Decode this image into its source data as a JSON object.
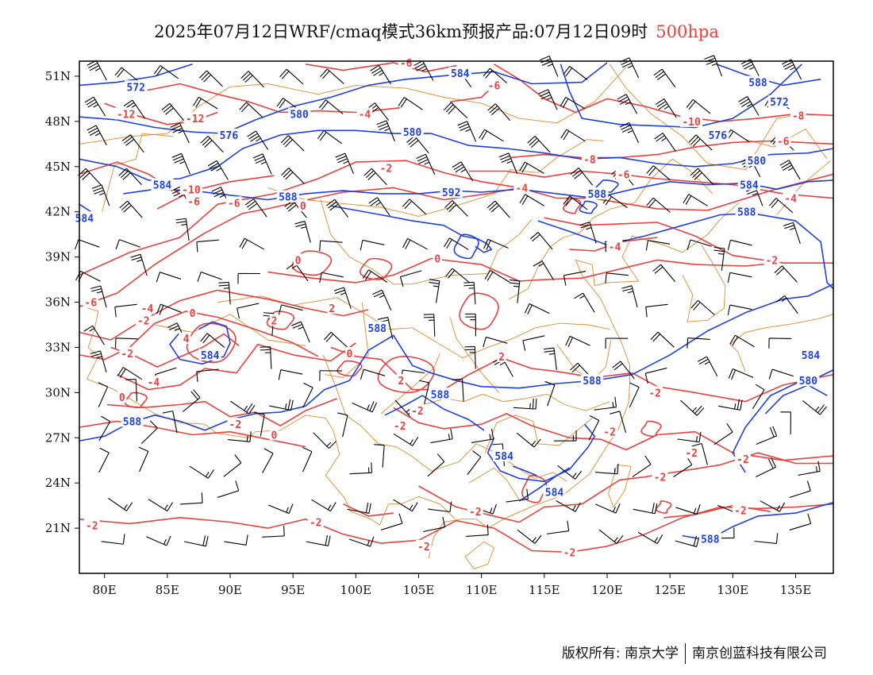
{
  "title": {
    "main": "2025年07月12日WRF/cmaq模式36km预报产品:07月12日09时",
    "level": "500hpa"
  },
  "axes": {
    "x_ticks": [
      "80E",
      "85E",
      "90E",
      "95E",
      "100E",
      "105E",
      "110E",
      "115E",
      "120E",
      "125E",
      "130E",
      "135E"
    ],
    "y_ticks": [
      "51N",
      "48N",
      "45N",
      "42N",
      "39N",
      "36N",
      "33N",
      "30N",
      "27N",
      "24N",
      "21N"
    ]
  },
  "map_extent": {
    "lon_min": 78,
    "lon_max": 138,
    "lat_min": 18,
    "lat_max": 52
  },
  "colors": {
    "height_contour": "#1f3fe0",
    "temperature_contour": "#e8413e",
    "boundaries": "#e08a30",
    "wind_barbs": "#000000"
  },
  "height_labels": [
    {
      "text": "572",
      "lon": 82.5,
      "lat": 50.3
    },
    {
      "text": "584",
      "lon": 108.3,
      "lat": 51.2
    },
    {
      "text": "588",
      "lon": 132.0,
      "lat": 50.6
    },
    {
      "text": "572",
      "lon": 133.7,
      "lat": 49.3
    },
    {
      "text": "580",
      "lon": 95.5,
      "lat": 48.5
    },
    {
      "text": "576",
      "lon": 89.9,
      "lat": 47.1
    },
    {
      "text": "580",
      "lon": 104.5,
      "lat": 47.3
    },
    {
      "text": "576",
      "lon": 128.8,
      "lat": 47.1
    },
    {
      "text": "580",
      "lon": 131.9,
      "lat": 45.4
    },
    {
      "text": "584",
      "lon": 84.6,
      "lat": 43.8
    },
    {
      "text": "588",
      "lon": 94.6,
      "lat": 43.0
    },
    {
      "text": "592",
      "lon": 107.6,
      "lat": 43.3
    },
    {
      "text": "588",
      "lon": 119.2,
      "lat": 43.2
    },
    {
      "text": "584",
      "lon": 131.3,
      "lat": 43.8
    },
    {
      "text": "588",
      "lon": 131.1,
      "lat": 42.0
    },
    {
      "text": "584",
      "lon": 78.4,
      "lat": 41.6
    },
    {
      "text": "588",
      "lon": 101.7,
      "lat": 34.3
    },
    {
      "text": "584",
      "lon": 88.4,
      "lat": 32.5
    },
    {
      "text": "588",
      "lon": 118.8,
      "lat": 30.8
    },
    {
      "text": "584",
      "lon": 136.2,
      "lat": 32.5
    },
    {
      "text": "580",
      "lon": 136.0,
      "lat": 30.8
    },
    {
      "text": "588",
      "lon": 106.7,
      "lat": 29.9
    },
    {
      "text": "588",
      "lon": 82.2,
      "lat": 28.1
    },
    {
      "text": "584",
      "lon": 111.8,
      "lat": 25.8
    },
    {
      "text": "584",
      "lon": 115.8,
      "lat": 23.4
    },
    {
      "text": "588",
      "lon": 128.2,
      "lat": 20.3
    }
  ],
  "temperature_labels": [
    {
      "text": "-6",
      "lon": 104.0,
      "lat": 51.9
    },
    {
      "text": "-6",
      "lon": 111.0,
      "lat": 50.4
    },
    {
      "text": "-12",
      "lon": 81.7,
      "lat": 48.5
    },
    {
      "text": "-12",
      "lon": 87.2,
      "lat": 48.2
    },
    {
      "text": "-4",
      "lon": 100.7,
      "lat": 48.5
    },
    {
      "text": "-10",
      "lon": 126.7,
      "lat": 48.0
    },
    {
      "text": "-8",
      "lon": 135.2,
      "lat": 48.4
    },
    {
      "text": "-6",
      "lon": 134.0,
      "lat": 46.7
    },
    {
      "text": "-2",
      "lon": 102.4,
      "lat": 44.9
    },
    {
      "text": "-8",
      "lon": 118.6,
      "lat": 45.5
    },
    {
      "text": "-6",
      "lon": 121.3,
      "lat": 44.5
    },
    {
      "text": "-4",
      "lon": 113.2,
      "lat": 43.6
    },
    {
      "text": "-10",
      "lon": 86.9,
      "lat": 43.5
    },
    {
      "text": "-6",
      "lon": 87.1,
      "lat": 42.7
    },
    {
      "text": "-6",
      "lon": 90.3,
      "lat": 42.6
    },
    {
      "text": "0",
      "lon": 95.8,
      "lat": 42.4
    },
    {
      "text": "-4",
      "lon": 134.6,
      "lat": 42.9
    },
    {
      "text": "-4",
      "lon": 120.6,
      "lat": 39.7
    },
    {
      "text": "0",
      "lon": 95.4,
      "lat": 38.8
    },
    {
      "text": "0",
      "lon": 106.5,
      "lat": 38.9
    },
    {
      "text": "-2",
      "lon": 133.1,
      "lat": 38.8
    },
    {
      "text": "-6",
      "lon": 78.9,
      "lat": 36.0
    },
    {
      "text": "-4",
      "lon": 83.4,
      "lat": 35.6
    },
    {
      "text": "0",
      "lon": 87.0,
      "lat": 35.3
    },
    {
      "text": "-2",
      "lon": 83.1,
      "lat": 34.8
    },
    {
      "text": "2",
      "lon": 98.1,
      "lat": 35.6
    },
    {
      "text": "2",
      "lon": 93.5,
      "lat": 34.8
    },
    {
      "text": "4",
      "lon": 86.5,
      "lat": 33.6
    },
    {
      "text": "-2",
      "lon": 81.8,
      "lat": 32.6
    },
    {
      "text": "0",
      "lon": 99.5,
      "lat": 32.6
    },
    {
      "text": "2",
      "lon": 111.6,
      "lat": 32.4
    },
    {
      "text": "-4",
      "lon": 83.9,
      "lat": 30.7
    },
    {
      "text": "2",
      "lon": 103.6,
      "lat": 30.8
    },
    {
      "text": "-2",
      "lon": 123.8,
      "lat": 30.0
    },
    {
      "text": "0",
      "lon": 81.4,
      "lat": 29.7
    },
    {
      "text": "-2",
      "lon": 104.9,
      "lat": 28.8
    },
    {
      "text": "-2",
      "lon": 103.5,
      "lat": 27.8
    },
    {
      "text": "-2",
      "lon": 90.4,
      "lat": 27.9
    },
    {
      "text": "0",
      "lon": 93.5,
      "lat": 27.2
    },
    {
      "text": "-2",
      "lon": 120.2,
      "lat": 27.4
    },
    {
      "text": "-2",
      "lon": 126.7,
      "lat": 26.0
    },
    {
      "text": "-2",
      "lon": 130.8,
      "lat": 25.6
    },
    {
      "text": "-2",
      "lon": 124.2,
      "lat": 24.4
    },
    {
      "text": "-2",
      "lon": 109.5,
      "lat": 22.1
    },
    {
      "text": "-2",
      "lon": 130.6,
      "lat": 22.2
    },
    {
      "text": "-2",
      "lon": 96.8,
      "lat": 21.4
    },
    {
      "text": "-2",
      "lon": 79.0,
      "lat": 21.2
    },
    {
      "text": "-2",
      "lon": 105.4,
      "lat": 19.8
    },
    {
      "text": "-2",
      "lon": 117.0,
      "lat": 19.4
    }
  ],
  "footer": {
    "left": "版权所有: 南京大学",
    "right": "南京创蓝科技有限公司"
  }
}
